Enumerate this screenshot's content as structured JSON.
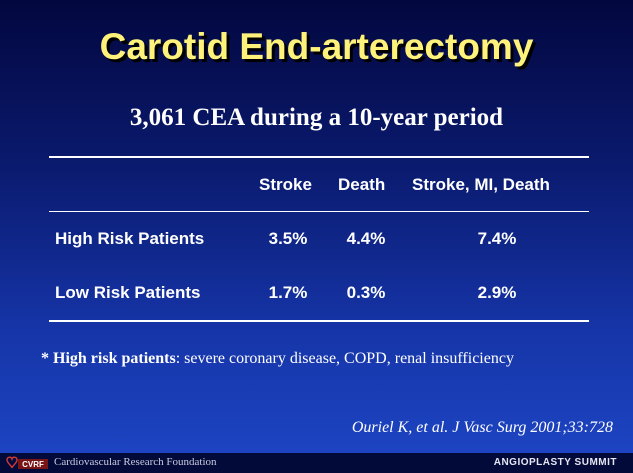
{
  "slide": {
    "title": "Carotid End-arterectomy",
    "subtitle": "3,061 CEA during a 10-year period"
  },
  "table": {
    "headers": [
      "Stroke",
      "Death",
      "Stroke, MI, Death"
    ],
    "rows": [
      {
        "label": "High Risk Patients",
        "values": [
          "3.5%",
          "4.4%",
          "7.4%"
        ]
      },
      {
        "label": "Low Risk Patients",
        "values": [
          "1.7%",
          "0.3%",
          "2.9%"
        ]
      }
    ]
  },
  "footnote": {
    "marker": "* ",
    "bold": "High risk patients",
    "rest": ": severe coronary disease, COPD, renal insufficiency"
  },
  "citation": "Ouriel K, et al. J Vasc Surg 2001;33:728",
  "footer": {
    "logo_text": "CVRF",
    "organization": "Cardiovascular Research Foundation",
    "event": "ANGIOPLASTY SUMMIT"
  },
  "colors": {
    "title": "#fff27a",
    "background_top": "#03073f",
    "background_bottom": "#1e46c6"
  }
}
